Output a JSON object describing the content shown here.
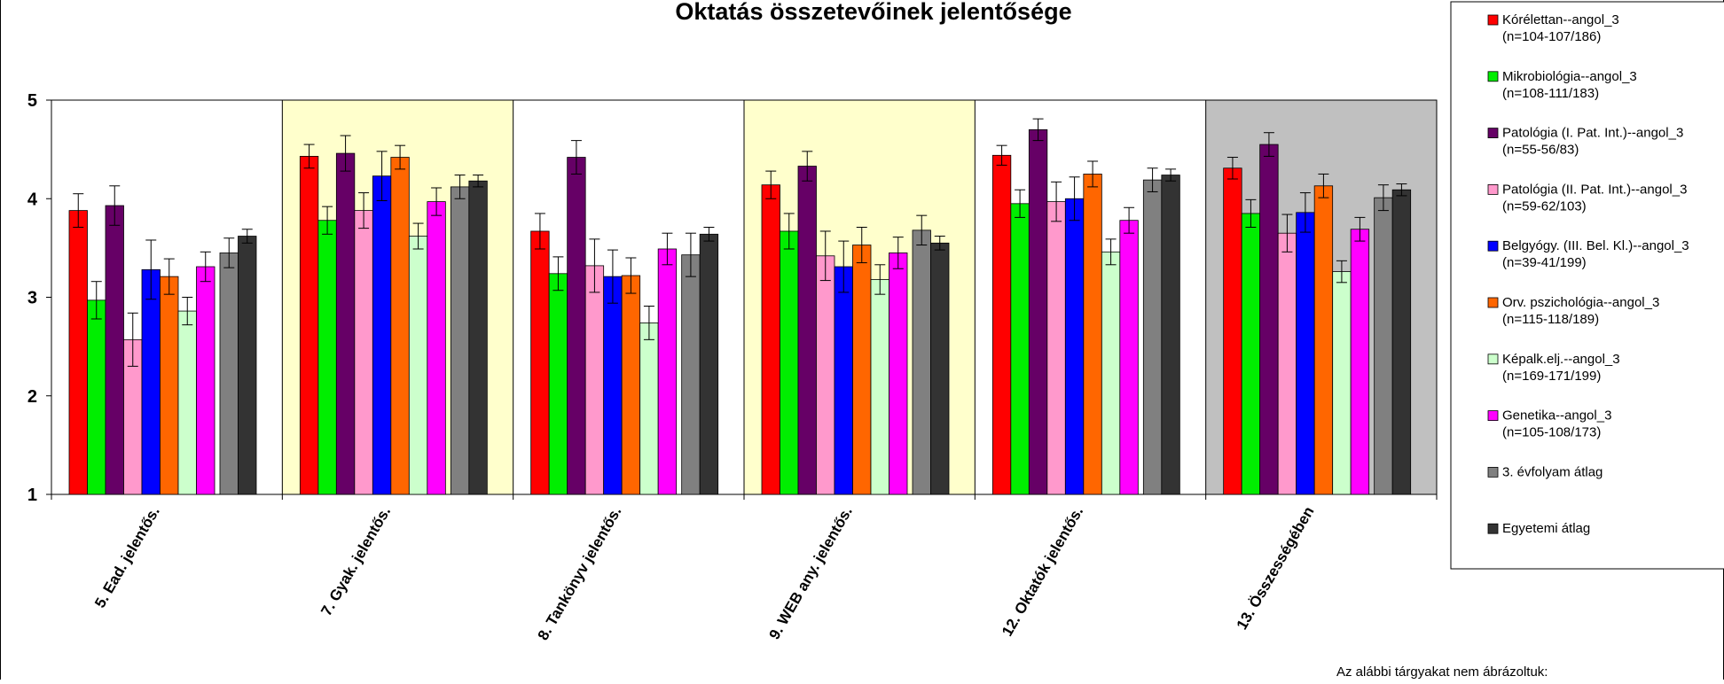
{
  "chart_data": {
    "type": "bar",
    "title": "Oktatás összetevőinek jelentősége",
    "xlabel": "",
    "ylabel": "",
    "ylim": [
      1,
      5
    ],
    "yticks": [
      1,
      2,
      3,
      4,
      5
    ],
    "categories": [
      "5. Ead. jelentős.",
      "7. Gyak. jelentős.",
      "8. Tankönyv jelentős.",
      "9. WEB any. jelentős.",
      "12. Oktatók jelentős.",
      "13. Összességében"
    ],
    "category_backgrounds": [
      "#ffffff",
      "#ffffcc",
      "#ffffff",
      "#ffffcc",
      "#ffffff",
      "#c0c0c0"
    ],
    "error_bars": true,
    "legend_position": "right",
    "series": [
      {
        "name": "Kórélettan--angol_3",
        "sublabel": "(n=104-107/186)",
        "color": "#ff0000",
        "values": [
          3.88,
          4.43,
          3.67,
          4.14,
          4.44,
          4.31
        ],
        "errors": [
          0.17,
          0.12,
          0.18,
          0.14,
          0.1,
          0.11
        ]
      },
      {
        "name": "Mikrobiológia--angol_3",
        "sublabel": "(n=108-111/183)",
        "color": "#00ee00",
        "values": [
          2.97,
          3.78,
          3.24,
          3.67,
          3.95,
          3.85
        ],
        "errors": [
          0.19,
          0.14,
          0.17,
          0.18,
          0.14,
          0.14
        ]
      },
      {
        "name": "Patológia (I. Pat. Int.)--angol_3",
        "sublabel": "(n=55-56/83)",
        "color": "#660066",
        "values": [
          3.93,
          4.46,
          4.42,
          4.33,
          4.7,
          4.55
        ],
        "errors": [
          0.2,
          0.18,
          0.17,
          0.15,
          0.11,
          0.12
        ]
      },
      {
        "name": "Patológia (II. Pat. Int.)--angol_3",
        "sublabel": "(n=59-62/103)",
        "color": "#ff99cc",
        "values": [
          2.57,
          3.88,
          3.32,
          3.42,
          3.97,
          3.65
        ],
        "errors": [
          0.27,
          0.18,
          0.27,
          0.25,
          0.2,
          0.19
        ]
      },
      {
        "name": "Belgyógy. (III. Bel. Kl.)--angol_3",
        "sublabel": "(n=39-41/199)",
        "color": "#0000ff",
        "values": [
          3.28,
          4.23,
          3.21,
          3.31,
          4.0,
          3.86
        ],
        "errors": [
          0.3,
          0.25,
          0.27,
          0.26,
          0.22,
          0.2
        ]
      },
      {
        "name": "Orv. pszichológia--angol_3",
        "sublabel": "(n=115-118/189)",
        "color": "#ff6600",
        "values": [
          3.21,
          4.42,
          3.22,
          3.53,
          4.25,
          4.13
        ],
        "errors": [
          0.18,
          0.12,
          0.18,
          0.18,
          0.13,
          0.12
        ]
      },
      {
        "name": "Képalk.elj.--angol_3",
        "sublabel": "(n=169-171/199)",
        "color": "#ccffcc",
        "values": [
          2.86,
          3.62,
          2.74,
          3.18,
          3.46,
          3.26
        ],
        "errors": [
          0.14,
          0.13,
          0.17,
          0.15,
          0.13,
          0.11
        ]
      },
      {
        "name": "Genetika--angol_3",
        "sublabel": "(n=105-108/173)",
        "color": "#ff00ff",
        "values": [
          3.31,
          3.97,
          3.49,
          3.45,
          3.78,
          3.69
        ],
        "errors": [
          0.15,
          0.14,
          0.16,
          0.16,
          0.13,
          0.12
        ]
      },
      {
        "name": "3. évfolyam átlag",
        "sublabel": "",
        "color": "#808080",
        "values": [
          3.45,
          4.12,
          3.43,
          3.68,
          4.19,
          4.01
        ],
        "errors": [
          0.15,
          0.12,
          0.22,
          0.15,
          0.12,
          0.13
        ]
      },
      {
        "name": "Egyetemi átlag",
        "sublabel": "",
        "color": "#333333",
        "values": [
          3.62,
          4.18,
          3.64,
          3.55,
          4.24,
          4.09
        ],
        "errors": [
          0.07,
          0.06,
          0.07,
          0.07,
          0.06,
          0.06
        ]
      }
    ],
    "footnote": "Az alábbi tárgyakat nem ábrázoltuk:"
  }
}
